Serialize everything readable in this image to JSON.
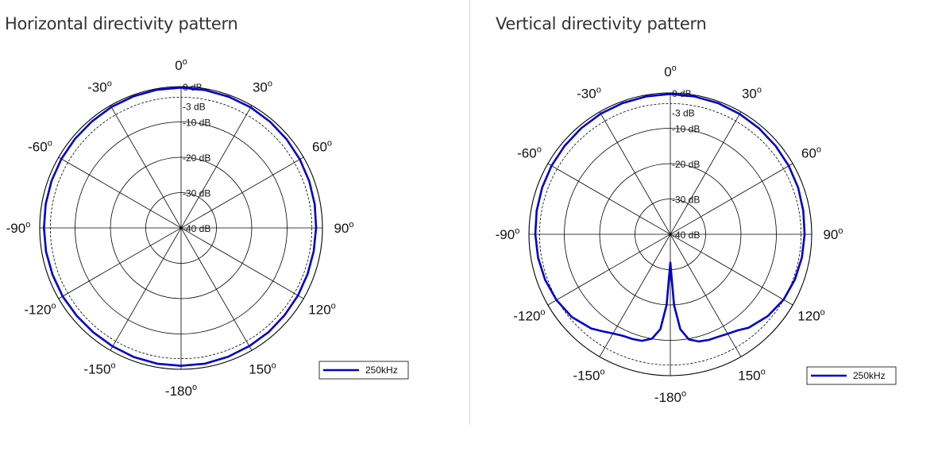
{
  "chart_data": [
    {
      "type": "polar-line",
      "title": "Horizontal directivity pattern",
      "angle_labels": [
        "0",
        "30",
        "60",
        "90",
        "120",
        "150",
        "-180",
        "-150",
        "-120",
        "-90",
        "-60",
        "-30"
      ],
      "ring_labels": [
        "0 dB",
        "-3 dB",
        "-10 dB",
        "-20 dB",
        "-30 dB",
        "-40 dB"
      ],
      "r_range_db": [
        -40,
        0
      ],
      "series": [
        {
          "name": "250kHz",
          "color": "#0000cc",
          "angles_deg": [
            0,
            10,
            20,
            30,
            40,
            50,
            60,
            70,
            80,
            90,
            100,
            110,
            120,
            130,
            140,
            150,
            160,
            170,
            180,
            190,
            200,
            210,
            220,
            230,
            240,
            250,
            260,
            270,
            280,
            290,
            300,
            310,
            320,
            330,
            340,
            350
          ],
          "values_db": [
            -0.3,
            -0.4,
            -0.5,
            -0.6,
            -0.8,
            -1.0,
            -1.2,
            -1.4,
            -1.6,
            -1.8,
            -1.9,
            -1.9,
            -1.8,
            -1.7,
            -1.5,
            -1.4,
            -1.2,
            -1.0,
            -1.0,
            -1.0,
            -1.1,
            -1.3,
            -1.4,
            -1.4,
            -1.3,
            -1.3,
            -1.2,
            -1.2,
            -1.1,
            -1.0,
            -0.9,
            -0.8,
            -0.7,
            -0.5,
            -0.4,
            -0.3
          ]
        }
      ]
    },
    {
      "type": "polar-line",
      "title": "Vertical directivity pattern",
      "angle_labels": [
        "0",
        "30",
        "60",
        "90",
        "120",
        "150",
        "-180",
        "-150",
        "-120",
        "-90",
        "-60",
        "-30"
      ],
      "ring_labels": [
        "0 dB",
        "-3 dB",
        "-10 dB",
        "-20 dB",
        "-30 dB",
        "-40 dB"
      ],
      "r_range_db": [
        -40,
        0
      ],
      "series": [
        {
          "name": "250kHz",
          "color": "#0000cc",
          "angles_deg": [
            0,
            10,
            20,
            30,
            40,
            50,
            60,
            70,
            80,
            90,
            100,
            110,
            120,
            130,
            140,
            145,
            150,
            155,
            160,
            165,
            170,
            174,
            177,
            180,
            183,
            186,
            190,
            195,
            200,
            205,
            210,
            215,
            220,
            230,
            240,
            250,
            260,
            270,
            280,
            290,
            300,
            310,
            320,
            330,
            340,
            350
          ],
          "values_db": [
            -0.3,
            -0.4,
            -0.5,
            -0.7,
            -0.9,
            -1.1,
            -1.3,
            -1.5,
            -1.8,
            -2.0,
            -2.2,
            -2.5,
            -3.0,
            -4.0,
            -5.5,
            -6.8,
            -7.5,
            -8.0,
            -8.2,
            -8.6,
            -9.8,
            -13.0,
            -20.0,
            -32.0,
            -20.0,
            -13.0,
            -10.0,
            -8.8,
            -8.5,
            -8.3,
            -7.6,
            -6.5,
            -5.2,
            -3.6,
            -2.8,
            -2.3,
            -2.0,
            -1.8,
            -1.6,
            -1.4,
            -1.2,
            -1.0,
            -0.8,
            -0.6,
            -0.5,
            -0.4
          ]
        }
      ]
    }
  ]
}
